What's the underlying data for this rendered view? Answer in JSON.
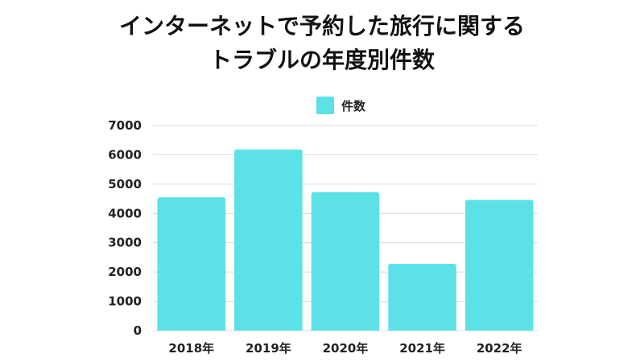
{
  "colors": {
    "bar": "#5CE1E6",
    "grid": "#d9d9d9",
    "text": "#111111"
  },
  "chart_data": {
    "type": "bar",
    "title_lines": [
      "インターネットで予約した旅行に関する",
      "トラブルの年度別件数"
    ],
    "xlabel": "",
    "ylabel": "",
    "categories": [
      "2018年",
      "2019年",
      "2020年",
      "2021年",
      "2022年"
    ],
    "series": [
      {
        "name": "件数",
        "values": [
          4550,
          6180,
          4720,
          2280,
          4460
        ]
      }
    ],
    "ylim": [
      0,
      7000
    ],
    "yticks": [
      0,
      1000,
      2000,
      3000,
      4000,
      5000,
      6000,
      7000
    ],
    "grid": true,
    "legend_position": "top-center"
  }
}
